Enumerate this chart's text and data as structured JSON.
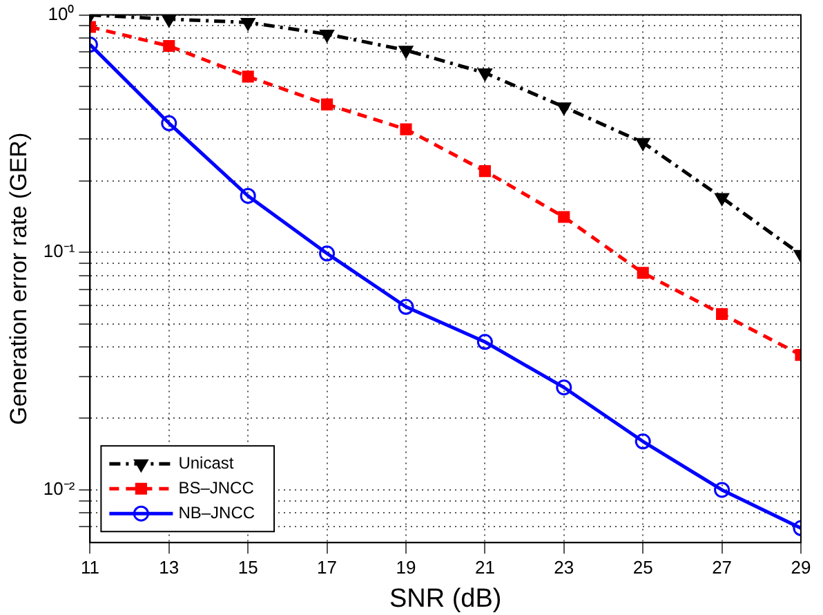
{
  "chart_data": {
    "type": "line",
    "xlabel": "SNR (dB)",
    "ylabel": "Generation error rate (GER)",
    "log": "y",
    "x": [
      11,
      13,
      15,
      17,
      19,
      21,
      23,
      25,
      27,
      29
    ],
    "series": [
      {
        "name": "Unicast",
        "color": "#000000",
        "marker": "triangle",
        "line_style": "dashdot",
        "values": [
          1.0,
          0.96,
          0.93,
          0.83,
          0.71,
          0.57,
          0.41,
          0.29,
          0.17,
          0.098
        ]
      },
      {
        "name": "BS–JNCC",
        "color": "#ff0000",
        "marker": "square",
        "line_style": "dashed",
        "values": [
          0.89,
          0.74,
          0.55,
          0.42,
          0.33,
          0.22,
          0.141,
          0.082,
          0.055,
          0.037
        ]
      },
      {
        "name": "NB–JNCC",
        "color": "#0000ff",
        "marker": "circle",
        "line_style": "solid",
        "values": [
          0.75,
          0.35,
          0.173,
          0.099,
          0.059,
          0.042,
          0.027,
          0.016,
          0.01,
          0.0069
        ]
      }
    ],
    "xlim": [
      11,
      29
    ],
    "xticks": [
      11,
      13,
      15,
      17,
      19,
      21,
      23,
      25,
      27,
      29
    ],
    "ylim": [
      0.006,
      1
    ],
    "yticks": [
      {
        "value": 0.007,
        "label": null
      },
      {
        "value": 0.008,
        "label": null
      },
      {
        "value": 0.009,
        "label": null
      },
      {
        "value": 0.01,
        "label": "10⁻²"
      },
      {
        "value": 0.02,
        "label": null
      },
      {
        "value": 0.03,
        "label": null
      },
      {
        "value": 0.04,
        "label": null
      },
      {
        "value": 0.05,
        "label": null
      },
      {
        "value": 0.06,
        "label": null
      },
      {
        "value": 0.07,
        "label": null
      },
      {
        "value": 0.08,
        "label": null
      },
      {
        "value": 0.09,
        "label": null
      },
      {
        "value": 0.1,
        "label": "10⁻¹"
      },
      {
        "value": 0.2,
        "label": null
      },
      {
        "value": 0.3,
        "label": null
      },
      {
        "value": 0.4,
        "label": null
      },
      {
        "value": 0.5,
        "label": null
      },
      {
        "value": 0.6,
        "label": null
      },
      {
        "value": 0.7,
        "label": null
      },
      {
        "value": 0.8,
        "label": null
      },
      {
        "value": 0.9,
        "label": null
      },
      {
        "value": 1,
        "label": "10⁰"
      }
    ],
    "grid": true,
    "legend": "bottom left"
  }
}
